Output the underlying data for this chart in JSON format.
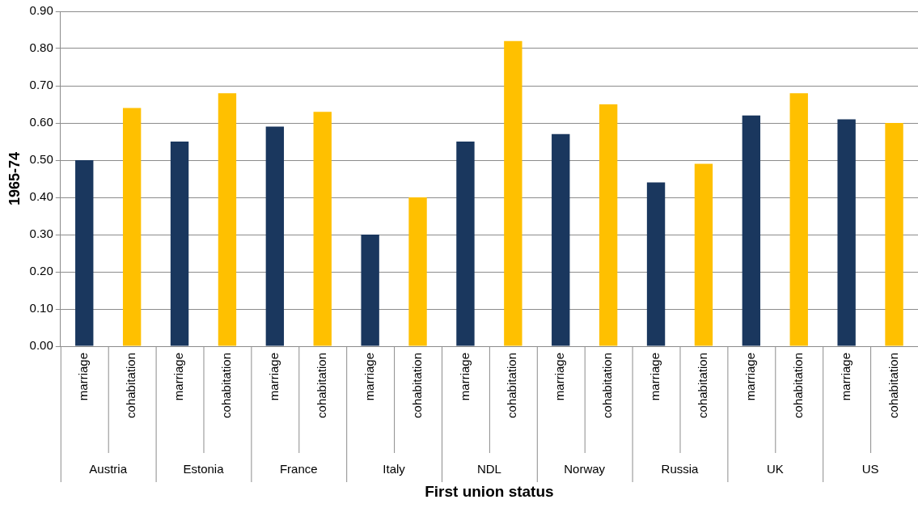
{
  "chart_data": {
    "type": "bar",
    "xlabel": "First union status",
    "ylabel": "1965-74",
    "categories": [
      "marriage",
      "cohabitation",
      "marriage",
      "cohabitation",
      "marriage",
      "cohabitation",
      "marriage",
      "cohabitation",
      "marriage",
      "cohabitation",
      "marriage",
      "cohabitation",
      "marriage",
      "cohabitation",
      "marriage",
      "cohabitation",
      "marriage",
      "cohabitation"
    ],
    "values": [
      0.5,
      0.64,
      0.55,
      0.68,
      0.59,
      0.63,
      0.3,
      0.4,
      0.55,
      0.82,
      0.57,
      0.65,
      0.44,
      0.49,
      0.62,
      0.68,
      0.61,
      0.6
    ],
    "colors": [
      "#1a375e",
      "#ffc000",
      "#1a375e",
      "#ffc000",
      "#1a375e",
      "#ffc000",
      "#1a375e",
      "#ffc000",
      "#1a375e",
      "#ffc000",
      "#1a375e",
      "#ffc000",
      "#1a375e",
      "#ffc000",
      "#1a375e",
      "#ffc000",
      "#1a375e",
      "#ffc000"
    ],
    "annotations": [
      "Austria",
      "Estonia",
      "France",
      "Italy",
      "NDL",
      "Norway",
      "Russia",
      "UK",
      "US"
    ],
    "ylim": [
      0,
      0.9
    ],
    "yticks": [
      {
        "value": 0,
        "label": "0.00"
      },
      {
        "value": 0.1,
        "label": "0.10"
      },
      {
        "value": 0.2,
        "label": "0.20"
      },
      {
        "value": 0.3,
        "label": "0.30"
      },
      {
        "value": 0.4,
        "label": "0.40"
      },
      {
        "value": 0.5,
        "label": "0.50"
      },
      {
        "value": 0.6,
        "label": "0.60"
      },
      {
        "value": 0.7,
        "label": "0.70"
      },
      {
        "value": 0.8,
        "label": "0.80"
      },
      {
        "value": 0.9,
        "label": "0.90"
      }
    ],
    "grid": "y"
  }
}
